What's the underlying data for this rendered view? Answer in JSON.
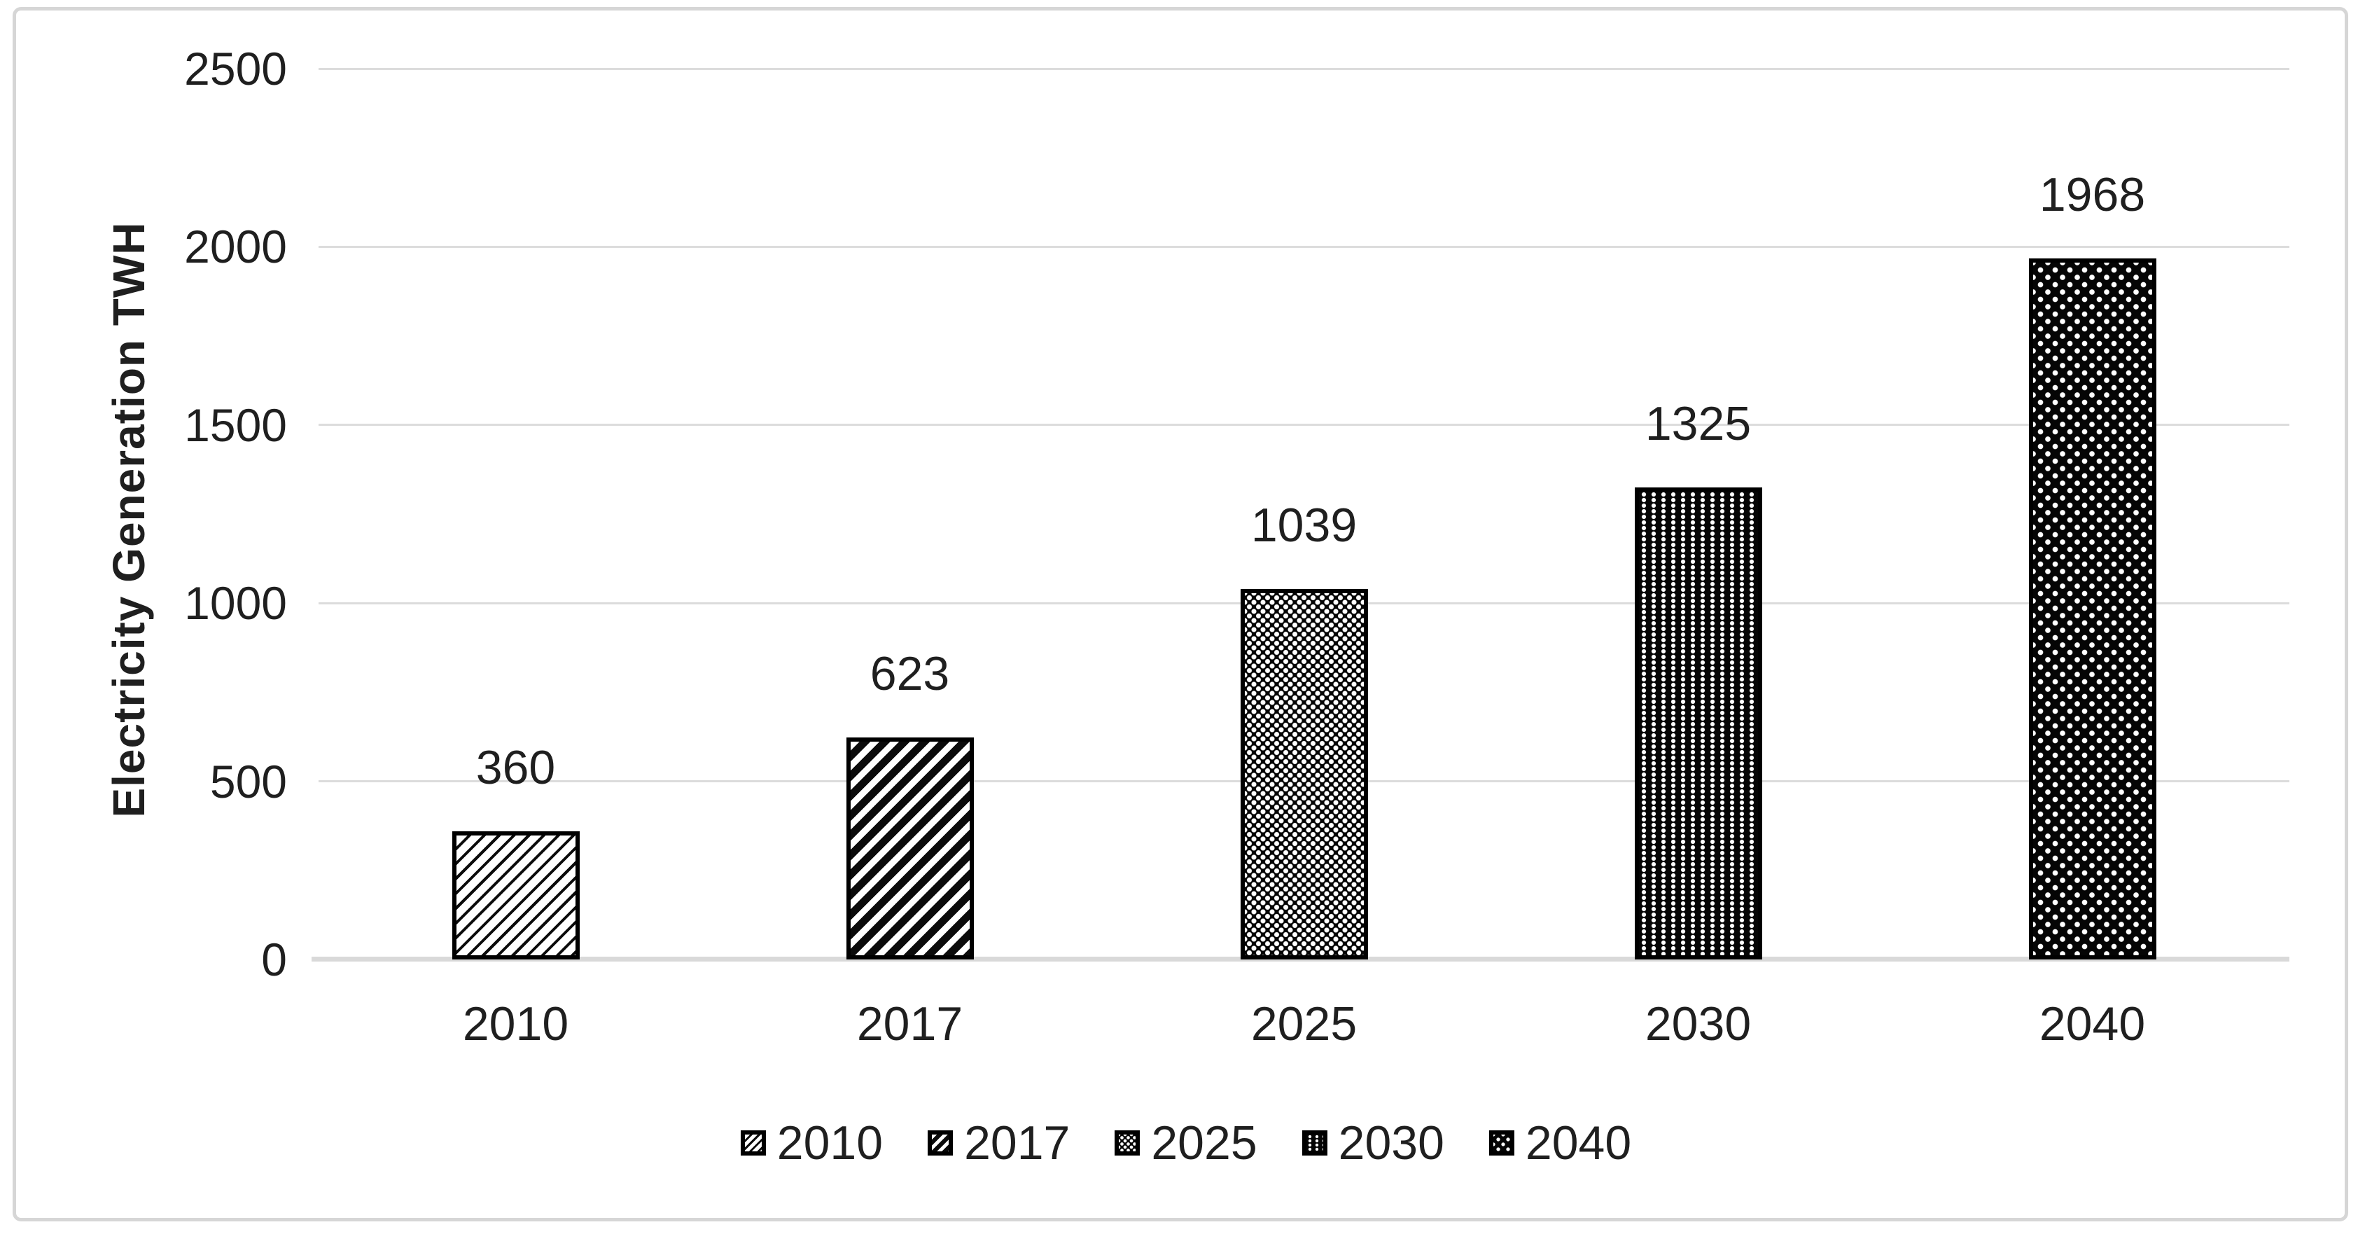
{
  "chart_data": {
    "type": "bar",
    "title": "",
    "xlabel": "",
    "ylabel": "Electricity Generation TWH",
    "categories": [
      "2010",
      "2017",
      "2025",
      "2030",
      "2040"
    ],
    "values": [
      360,
      623,
      1039,
      1325,
      1968
    ],
    "ylim": [
      0,
      2500
    ],
    "yticks": [
      0,
      500,
      1000,
      1500,
      2000,
      2500
    ],
    "grid": true,
    "gridline_color": "#dcdcdc",
    "axis_line_color": "#d9d9d9",
    "bar_outline_color": "#000000",
    "bar_fill_style": "black-and-white-patterns",
    "data_labels": [
      "360",
      "623",
      "1039",
      "1325",
      "1968"
    ],
    "legend_position": "bottom",
    "legend": [
      {
        "label": "2010",
        "pattern": "light-upward-diagonal-stripes"
      },
      {
        "label": "2017",
        "pattern": "wide-upward-diagonal-stripes"
      },
      {
        "label": "2025",
        "pattern": "dotted-diamond-weave"
      },
      {
        "label": "2030",
        "pattern": "dense-dotted-grid"
      },
      {
        "label": "2040",
        "pattern": "sparse-diagonal-dots"
      }
    ],
    "text_color": "#1f1f1f",
    "figure_border_color": "#d6d6d6",
    "background_color": "#ffffff"
  }
}
